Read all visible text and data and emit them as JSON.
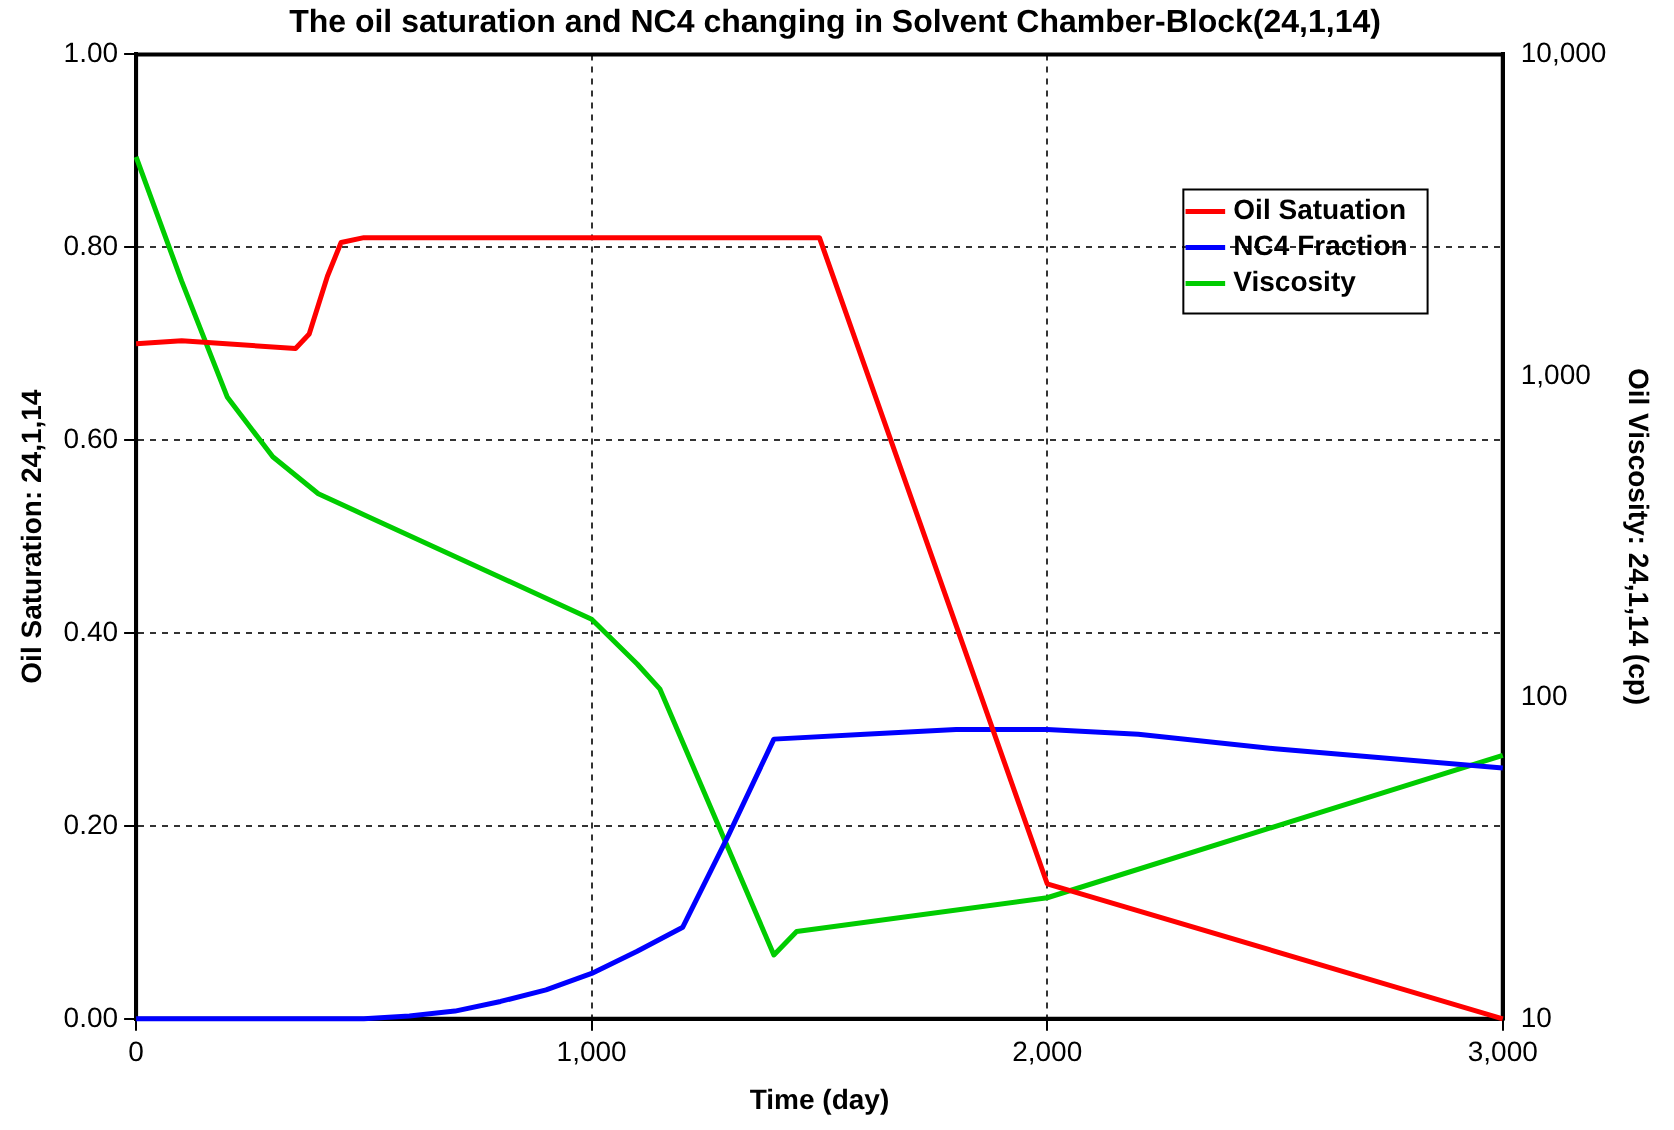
{
  "chart_data": {
    "type": "line",
    "title": "The oil saturation and NC4 changing in Solvent Chamber-Block(24,1,14)",
    "xlabel": "Time (day)",
    "ylabel": "Oil Saturation: 24,1,14",
    "y2label": "Oil Viscosity: 24,1,14 (cp)",
    "xlim": [
      0,
      3000
    ],
    "xticks": [
      0,
      {
        "value": 1000,
        "label": "1,000"
      },
      {
        "value": 2000,
        "label": "2,000"
      },
      {
        "value": 3000,
        "label": "3,000"
      }
    ],
    "ylim": [
      0,
      1
    ],
    "yticks": [
      {
        "value": 0,
        "label": "0.00"
      },
      {
        "value": 0.2,
        "label": "0.20"
      },
      {
        "value": 0.4,
        "label": "0.40"
      },
      {
        "value": 0.6,
        "label": "0.60"
      },
      {
        "value": 0.8,
        "label": "0.80"
      },
      {
        "value": 1,
        "label": "1.00"
      }
    ],
    "y2lim": [
      10,
      10000
    ],
    "y2ticks": [
      10,
      100,
      {
        "value": 1000,
        "label": "1,000"
      },
      {
        "value": 10000,
        "label": "10,000"
      }
    ],
    "log": "y2",
    "grid": true,
    "legend": "top right",
    "marker": "none",
    "line_style": "solid",
    "series": [
      {
        "name": "Oil Satuation",
        "color": "#ff0000",
        "x": [
          0,
          100,
          350,
          380,
          420,
          450,
          500,
          1500,
          2000,
          3000
        ],
        "values": [
          0.7,
          0.703,
          0.695,
          0.71,
          0.77,
          0.805,
          0.81,
          0.81,
          0.14,
          0
        ]
      },
      {
        "name": "NC4 Fraction",
        "color": "#0000ff",
        "x": [
          0,
          500,
          600,
          700,
          800,
          900,
          1000,
          1100,
          1200,
          1300,
          1400,
          1600,
          1800,
          2000,
          2200,
          2500,
          3000
        ],
        "values": [
          0,
          0,
          0.003,
          0.008,
          0.018,
          0.03,
          0.047,
          0.07,
          0.095,
          0.19,
          0.29,
          0.295,
          0.3,
          0.3,
          0.295,
          0.28,
          0.26
        ]
      },
      {
        "name": "Viscosity",
        "color": "#00cc00",
        "axis": "y2",
        "x": [
          0,
          100,
          200,
          300,
          400,
          500,
          1000,
          1100,
          1150,
          1400,
          1450,
          2000,
          3000
        ],
        "values": [
          4800,
          1970,
          860,
          560,
          430,
          370,
          175,
          127,
          106,
          15.8,
          18.7,
          23.8,
          66
        ]
      }
    ]
  }
}
